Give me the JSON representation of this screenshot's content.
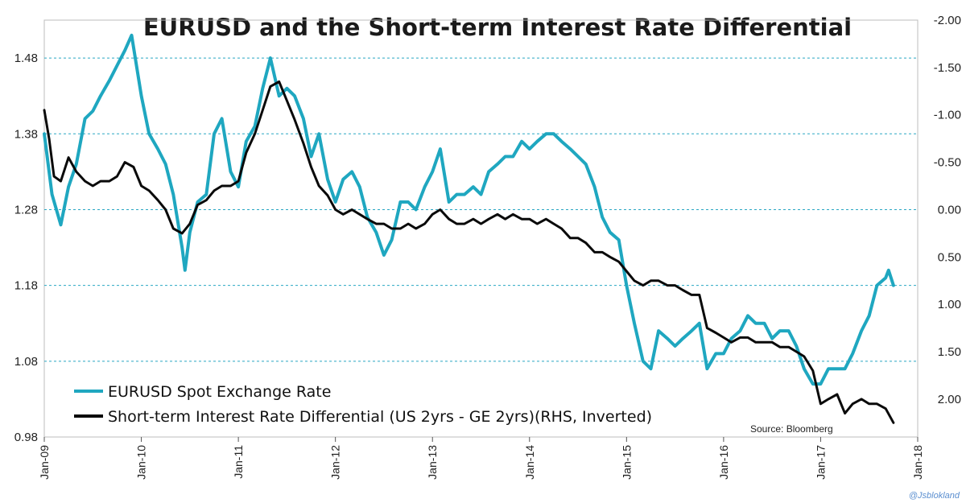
{
  "chart_data": {
    "type": "line",
    "title": "EURUSD and the Short-term Interest Rate Differential",
    "source": "Source: Bloomberg",
    "watermark": "@Jsblokland",
    "grid": "horizontal dashed",
    "legend_placement": "bottom-left",
    "x_ticks": [
      "Jan-09",
      "Jan-10",
      "Jan-11",
      "Jan-12",
      "Jan-13",
      "Jan-14",
      "Jan-15",
      "Jan-16",
      "Jan-17",
      "Jan-18"
    ],
    "x_range": [
      2009.0,
      2018.0
    ],
    "y_left": {
      "ticks": [
        "1.48",
        "1.38",
        "1.28",
        "1.18",
        "1.08",
        "0.98"
      ],
      "range": [
        0.98,
        1.53
      ]
    },
    "y_right": {
      "ticks": [
        "-2.00",
        "-1.50",
        "-1.00",
        "-0.50",
        "0.00",
        "0.50",
        "1.00",
        "1.50",
        "2.00"
      ],
      "range": [
        -2.0,
        2.4
      ],
      "inverted": true
    },
    "series": [
      {
        "name": "EURUSD Spot Exchange Rate",
        "axis": "left",
        "color": "#1fa7c0",
        "points": [
          [
            2009.0,
            1.38
          ],
          [
            2009.08,
            1.3
          ],
          [
            2009.17,
            1.26
          ],
          [
            2009.25,
            1.31
          ],
          [
            2009.33,
            1.34
          ],
          [
            2009.42,
            1.4
          ],
          [
            2009.5,
            1.41
          ],
          [
            2009.58,
            1.43
          ],
          [
            2009.67,
            1.45
          ],
          [
            2009.75,
            1.47
          ],
          [
            2009.83,
            1.49
          ],
          [
            2009.9,
            1.51
          ],
          [
            2010.0,
            1.43
          ],
          [
            2010.08,
            1.38
          ],
          [
            2010.17,
            1.36
          ],
          [
            2010.25,
            1.34
          ],
          [
            2010.33,
            1.3
          ],
          [
            2010.42,
            1.23
          ],
          [
            2010.45,
            1.2
          ],
          [
            2010.5,
            1.25
          ],
          [
            2010.58,
            1.29
          ],
          [
            2010.67,
            1.3
          ],
          [
            2010.75,
            1.38
          ],
          [
            2010.83,
            1.4
          ],
          [
            2010.92,
            1.33
          ],
          [
            2011.0,
            1.31
          ],
          [
            2011.08,
            1.37
          ],
          [
            2011.17,
            1.39
          ],
          [
            2011.25,
            1.44
          ],
          [
            2011.33,
            1.48
          ],
          [
            2011.42,
            1.43
          ],
          [
            2011.5,
            1.44
          ],
          [
            2011.58,
            1.43
          ],
          [
            2011.67,
            1.4
          ],
          [
            2011.75,
            1.35
          ],
          [
            2011.83,
            1.38
          ],
          [
            2011.92,
            1.32
          ],
          [
            2012.0,
            1.29
          ],
          [
            2012.08,
            1.32
          ],
          [
            2012.17,
            1.33
          ],
          [
            2012.25,
            1.31
          ],
          [
            2012.33,
            1.27
          ],
          [
            2012.42,
            1.25
          ],
          [
            2012.5,
            1.22
          ],
          [
            2012.58,
            1.24
          ],
          [
            2012.67,
            1.29
          ],
          [
            2012.75,
            1.29
          ],
          [
            2012.83,
            1.28
          ],
          [
            2012.92,
            1.31
          ],
          [
            2013.0,
            1.33
          ],
          [
            2013.08,
            1.36
          ],
          [
            2013.17,
            1.29
          ],
          [
            2013.25,
            1.3
          ],
          [
            2013.33,
            1.3
          ],
          [
            2013.42,
            1.31
          ],
          [
            2013.5,
            1.3
          ],
          [
            2013.58,
            1.33
          ],
          [
            2013.67,
            1.34
          ],
          [
            2013.75,
            1.35
          ],
          [
            2013.83,
            1.35
          ],
          [
            2013.92,
            1.37
          ],
          [
            2014.0,
            1.36
          ],
          [
            2014.08,
            1.37
          ],
          [
            2014.17,
            1.38
          ],
          [
            2014.25,
            1.38
          ],
          [
            2014.33,
            1.37
          ],
          [
            2014.42,
            1.36
          ],
          [
            2014.5,
            1.35
          ],
          [
            2014.58,
            1.34
          ],
          [
            2014.67,
            1.31
          ],
          [
            2014.75,
            1.27
          ],
          [
            2014.83,
            1.25
          ],
          [
            2014.92,
            1.24
          ],
          [
            2015.0,
            1.18
          ],
          [
            2015.08,
            1.13
          ],
          [
            2015.17,
            1.08
          ],
          [
            2015.25,
            1.07
          ],
          [
            2015.33,
            1.12
          ],
          [
            2015.42,
            1.11
          ],
          [
            2015.5,
            1.1
          ],
          [
            2015.58,
            1.11
          ],
          [
            2015.67,
            1.12
          ],
          [
            2015.75,
            1.13
          ],
          [
            2015.83,
            1.07
          ],
          [
            2015.92,
            1.09
          ],
          [
            2016.0,
            1.09
          ],
          [
            2016.08,
            1.11
          ],
          [
            2016.17,
            1.12
          ],
          [
            2016.25,
            1.14
          ],
          [
            2016.33,
            1.13
          ],
          [
            2016.42,
            1.13
          ],
          [
            2016.5,
            1.11
          ],
          [
            2016.58,
            1.12
          ],
          [
            2016.67,
            1.12
          ],
          [
            2016.75,
            1.1
          ],
          [
            2016.83,
            1.07
          ],
          [
            2016.92,
            1.05
          ],
          [
            2017.0,
            1.05
          ],
          [
            2017.08,
            1.07
          ],
          [
            2017.17,
            1.07
          ],
          [
            2017.25,
            1.07
          ],
          [
            2017.33,
            1.09
          ],
          [
            2017.42,
            1.12
          ],
          [
            2017.5,
            1.14
          ],
          [
            2017.58,
            1.18
          ],
          [
            2017.67,
            1.19
          ],
          [
            2017.7,
            1.2
          ],
          [
            2017.75,
            1.18
          ]
        ]
      },
      {
        "name": "Short-term Interest Rate Differential (US 2yrs - GE 2yrs)(RHS, Inverted)",
        "axis": "right",
        "color": "#0a0a0a",
        "points": [
          [
            2009.0,
            -1.05
          ],
          [
            2009.05,
            -0.75
          ],
          [
            2009.1,
            -0.35
          ],
          [
            2009.17,
            -0.3
          ],
          [
            2009.25,
            -0.55
          ],
          [
            2009.33,
            -0.4
          ],
          [
            2009.42,
            -0.3
          ],
          [
            2009.5,
            -0.25
          ],
          [
            2009.58,
            -0.3
          ],
          [
            2009.67,
            -0.3
          ],
          [
            2009.75,
            -0.35
          ],
          [
            2009.83,
            -0.5
          ],
          [
            2009.92,
            -0.45
          ],
          [
            2010.0,
            -0.25
          ],
          [
            2010.08,
            -0.2
          ],
          [
            2010.17,
            -0.1
          ],
          [
            2010.25,
            0.0
          ],
          [
            2010.33,
            0.2
          ],
          [
            2010.42,
            0.25
          ],
          [
            2010.5,
            0.15
          ],
          [
            2010.58,
            -0.05
          ],
          [
            2010.67,
            -0.1
          ],
          [
            2010.75,
            -0.2
          ],
          [
            2010.83,
            -0.25
          ],
          [
            2010.92,
            -0.25
          ],
          [
            2011.0,
            -0.3
          ],
          [
            2011.08,
            -0.6
          ],
          [
            2011.17,
            -0.8
          ],
          [
            2011.25,
            -1.05
          ],
          [
            2011.33,
            -1.3
          ],
          [
            2011.42,
            -1.35
          ],
          [
            2011.5,
            -1.15
          ],
          [
            2011.58,
            -0.95
          ],
          [
            2011.67,
            -0.7
          ],
          [
            2011.75,
            -0.45
          ],
          [
            2011.83,
            -0.25
          ],
          [
            2011.92,
            -0.15
          ],
          [
            2012.0,
            0.0
          ],
          [
            2012.08,
            0.05
          ],
          [
            2012.17,
            0.0
          ],
          [
            2012.25,
            0.05
          ],
          [
            2012.33,
            0.1
          ],
          [
            2012.42,
            0.15
          ],
          [
            2012.5,
            0.15
          ],
          [
            2012.58,
            0.2
          ],
          [
            2012.67,
            0.2
          ],
          [
            2012.75,
            0.15
          ],
          [
            2012.83,
            0.2
          ],
          [
            2012.92,
            0.15
          ],
          [
            2013.0,
            0.05
          ],
          [
            2013.08,
            0.0
          ],
          [
            2013.17,
            0.1
          ],
          [
            2013.25,
            0.15
          ],
          [
            2013.33,
            0.15
          ],
          [
            2013.42,
            0.1
          ],
          [
            2013.5,
            0.15
          ],
          [
            2013.58,
            0.1
          ],
          [
            2013.67,
            0.05
          ],
          [
            2013.75,
            0.1
          ],
          [
            2013.83,
            0.05
          ],
          [
            2013.92,
            0.1
          ],
          [
            2014.0,
            0.1
          ],
          [
            2014.08,
            0.15
          ],
          [
            2014.17,
            0.1
          ],
          [
            2014.25,
            0.15
          ],
          [
            2014.33,
            0.2
          ],
          [
            2014.42,
            0.3
          ],
          [
            2014.5,
            0.3
          ],
          [
            2014.58,
            0.35
          ],
          [
            2014.67,
            0.45
          ],
          [
            2014.75,
            0.45
          ],
          [
            2014.83,
            0.5
          ],
          [
            2014.92,
            0.55
          ],
          [
            2015.0,
            0.65
          ],
          [
            2015.08,
            0.75
          ],
          [
            2015.17,
            0.8
          ],
          [
            2015.25,
            0.75
          ],
          [
            2015.33,
            0.75
          ],
          [
            2015.42,
            0.8
          ],
          [
            2015.5,
            0.8
          ],
          [
            2015.58,
            0.85
          ],
          [
            2015.67,
            0.9
          ],
          [
            2015.75,
            0.9
          ],
          [
            2015.83,
            1.25
          ],
          [
            2015.92,
            1.3
          ],
          [
            2016.0,
            1.35
          ],
          [
            2016.08,
            1.4
          ],
          [
            2016.17,
            1.35
          ],
          [
            2016.25,
            1.35
          ],
          [
            2016.33,
            1.4
          ],
          [
            2016.42,
            1.4
          ],
          [
            2016.5,
            1.4
          ],
          [
            2016.58,
            1.45
          ],
          [
            2016.67,
            1.45
          ],
          [
            2016.75,
            1.5
          ],
          [
            2016.83,
            1.55
          ],
          [
            2016.92,
            1.7
          ],
          [
            2017.0,
            2.05
          ],
          [
            2017.08,
            2.0
          ],
          [
            2017.17,
            1.95
          ],
          [
            2017.25,
            2.15
          ],
          [
            2017.33,
            2.05
          ],
          [
            2017.42,
            2.0
          ],
          [
            2017.5,
            2.05
          ],
          [
            2017.58,
            2.05
          ],
          [
            2017.67,
            2.1
          ],
          [
            2017.75,
            2.25
          ]
        ]
      }
    ]
  }
}
